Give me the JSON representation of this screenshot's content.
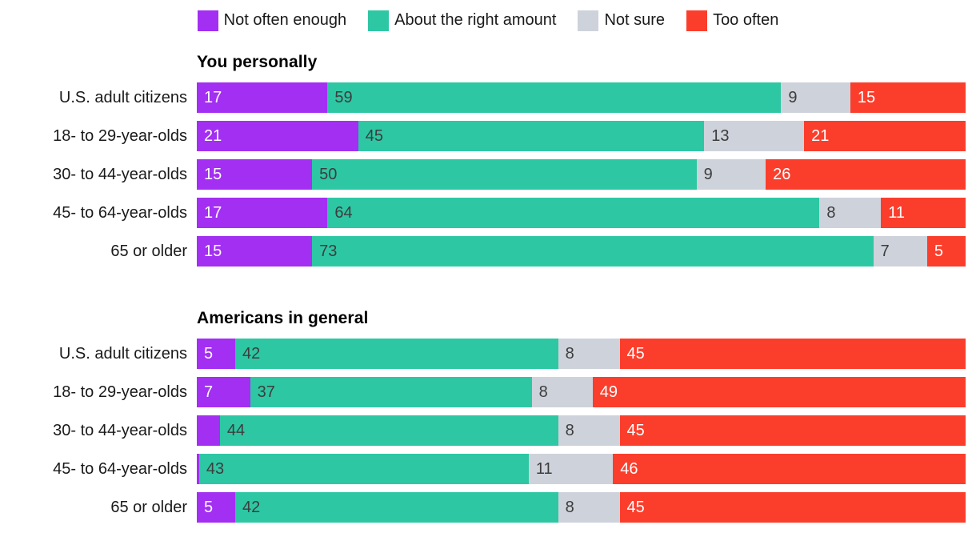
{
  "legend": {
    "items": [
      {
        "label": "Not often enough",
        "color": "#a32ff2",
        "value_text_color": "#ffffff"
      },
      {
        "label": "About the right amount",
        "color": "#2ec7a4",
        "value_text_color": "#3d3d3d"
      },
      {
        "label": "Not sure",
        "color": "#ced2db",
        "value_text_color": "#3d3d3d"
      },
      {
        "label": "Too often",
        "color": "#fb3e2c",
        "value_text_color": "#ffffff"
      }
    ]
  },
  "charts": [
    {
      "title": "You personally",
      "rows": [
        {
          "label": "U.S. adult citizens",
          "segments": [
            {
              "value": 17,
              "text": "17"
            },
            {
              "value": 59,
              "text": "59"
            },
            {
              "value": 9,
              "text": "9"
            },
            {
              "value": 15,
              "text": "15"
            }
          ]
        },
        {
          "label": "18- to 29-year-olds",
          "segments": [
            {
              "value": 21,
              "text": "21"
            },
            {
              "value": 45,
              "text": "45"
            },
            {
              "value": 13,
              "text": "13"
            },
            {
              "value": 21,
              "text": "21"
            }
          ]
        },
        {
          "label": "30- to 44-year-olds",
          "segments": [
            {
              "value": 15,
              "text": "15"
            },
            {
              "value": 50,
              "text": "50"
            },
            {
              "value": 9,
              "text": "9"
            },
            {
              "value": 26,
              "text": "26"
            }
          ]
        },
        {
          "label": "45- to 64-year-olds",
          "segments": [
            {
              "value": 17,
              "text": "17"
            },
            {
              "value": 64,
              "text": "64"
            },
            {
              "value": 8,
              "text": "8"
            },
            {
              "value": 11,
              "text": "11"
            }
          ]
        },
        {
          "label": "65 or older",
          "segments": [
            {
              "value": 15,
              "text": "15"
            },
            {
              "value": 73,
              "text": "73"
            },
            {
              "value": 7,
              "text": "7"
            },
            {
              "value": 5,
              "text": "5"
            }
          ]
        }
      ]
    },
    {
      "title": "Americans in general",
      "rows": [
        {
          "label": "U.S. adult citizens",
          "segments": [
            {
              "value": 5,
              "text": "5"
            },
            {
              "value": 42,
              "text": "42"
            },
            {
              "value": 8,
              "text": "8"
            },
            {
              "value": 45,
              "text": "45"
            }
          ]
        },
        {
          "label": "18- to 29-year-olds",
          "segments": [
            {
              "value": 7,
              "text": "7"
            },
            {
              "value": 37,
              "text": "37"
            },
            {
              "value": 8,
              "text": "8"
            },
            {
              "value": 49,
              "text": "49"
            }
          ]
        },
        {
          "label": "30- to 44-year-olds",
          "segments": [
            {
              "value": 3,
              "text": ""
            },
            {
              "value": 44,
              "text": "44"
            },
            {
              "value": 8,
              "text": "8"
            },
            {
              "value": 45,
              "text": "45"
            }
          ]
        },
        {
          "label": "45- to 64-year-olds",
          "segments": [
            {
              "value": 0.3,
              "text": ""
            },
            {
              "value": 43,
              "text": "43"
            },
            {
              "value": 11,
              "text": "11"
            },
            {
              "value": 46,
              "text": "46"
            }
          ]
        },
        {
          "label": "65 or older",
          "segments": [
            {
              "value": 5,
              "text": "5"
            },
            {
              "value": 42,
              "text": "42"
            },
            {
              "value": 8,
              "text": "8"
            },
            {
              "value": 45,
              "text": "45"
            }
          ]
        }
      ]
    }
  ],
  "colors": {
    "background": "#ffffff",
    "purple": "#a32ff2",
    "teal": "#2ec7a4",
    "gray": "#ced2db",
    "red": "#fb3e2c",
    "row_label_text": "#1a1a1a",
    "title_text": "#000000",
    "dark_value_text": "#3d3d3d",
    "light_value_text": "#ffffff"
  },
  "chart_data": [
    {
      "type": "bar",
      "orientation": "horizontal",
      "stacked": true,
      "title": "You personally",
      "categories": [
        "U.S. adult citizens",
        "18- to 29-year-olds",
        "30- to 44-year-olds",
        "45- to 64-year-olds",
        "65 or older"
      ],
      "series": [
        {
          "name": "Not often enough",
          "values": [
            17,
            21,
            15,
            17,
            15
          ]
        },
        {
          "name": "About the right amount",
          "values": [
            59,
            45,
            50,
            64,
            73
          ]
        },
        {
          "name": "Not sure",
          "values": [
            9,
            13,
            9,
            8,
            7
          ]
        },
        {
          "name": "Too often",
          "values": [
            15,
            21,
            26,
            11,
            5
          ]
        }
      ],
      "xlim": [
        0,
        100
      ],
      "value_labels": true,
      "grid": false,
      "legend_position": "top",
      "unlabeled_values_note": "all segments labeled"
    },
    {
      "type": "bar",
      "orientation": "horizontal",
      "stacked": true,
      "title": "Americans in general",
      "categories": [
        "U.S. adult citizens",
        "18- to 29-year-olds",
        "30- to 44-year-olds",
        "45- to 64-year-olds",
        "65 or older"
      ],
      "series": [
        {
          "name": "Not often enough",
          "values": [
            5,
            7,
            3,
            0,
            5
          ]
        },
        {
          "name": "About the right amount",
          "values": [
            42,
            37,
            44,
            43,
            42
          ]
        },
        {
          "name": "Not sure",
          "values": [
            8,
            8,
            8,
            11,
            8
          ]
        },
        {
          "name": "Too often",
          "values": [
            45,
            49,
            45,
            46,
            45
          ]
        }
      ],
      "xlim": [
        0,
        100
      ],
      "value_labels": true,
      "grid": false,
      "legend_position": "top",
      "unlabeled_values_note": "purple segments for 30-to-44 (approx 3) and 45-to-64 (approx 0, thin sliver) have no visible number labels"
    }
  ]
}
